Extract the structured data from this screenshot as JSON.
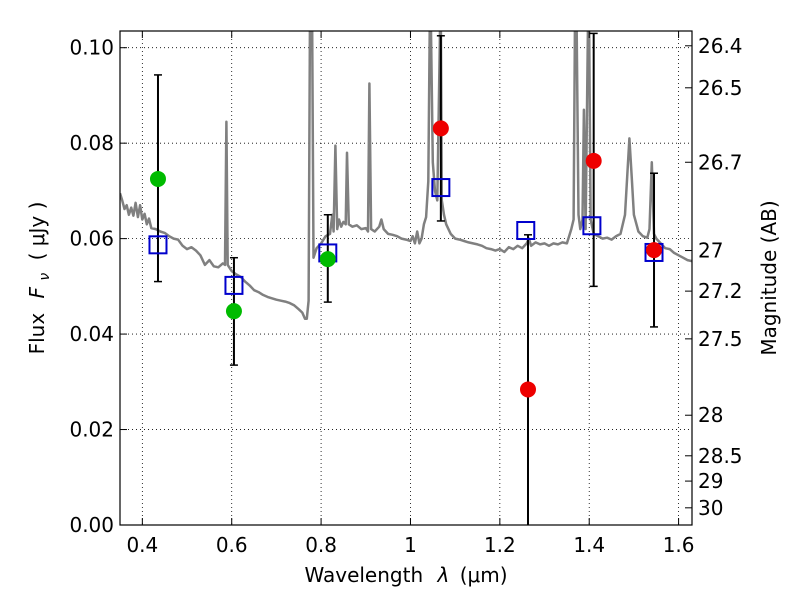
{
  "chart_data": {
    "type": "scatter",
    "xlabel_prefix": "Wavelength",
    "xlabel_symbol": "λ",
    "xlabel_units": "(μm)",
    "ylabel_prefix": "Flux",
    "ylabel_symbol": "F",
    "ylabel_subscript": "ν",
    "ylabel_units": "( μJy )",
    "ylabel_right": "Magnitude (AB)",
    "xlim": [
      0.35,
      1.63
    ],
    "ylim": [
      0.0,
      0.1035
    ],
    "x_ticks": [
      0.4,
      0.6,
      0.8,
      1.0,
      1.2,
      1.4,
      1.6
    ],
    "x_tick_labels": [
      "0.4",
      "0.6",
      "0.8",
      "1",
      "1.2",
      "1.4",
      "1.6"
    ],
    "y_ticks": [
      0.0,
      0.02,
      0.04,
      0.06,
      0.08,
      0.1
    ],
    "y_tick_labels": [
      "0.00",
      "0.02",
      "0.04",
      "0.06",
      "0.08",
      "0.10"
    ],
    "right_ticks": [
      {
        "flux": 0.1004,
        "label": "26.4"
      },
      {
        "flux": 0.0916,
        "label": "26.5"
      },
      {
        "flux": 0.076,
        "label": "26.7"
      },
      {
        "flux": 0.0575,
        "label": "27"
      },
      {
        "flux": 0.049,
        "label": "27.2"
      },
      {
        "flux": 0.039,
        "label": "27.5"
      },
      {
        "flux": 0.023,
        "label": "28"
      },
      {
        "flux": 0.0145,
        "label": "28.5"
      },
      {
        "flux": 0.0092,
        "label": "29"
      },
      {
        "flux": 0.0036,
        "label": "30"
      }
    ],
    "grid": true,
    "colors": {
      "spectrum": "#808080",
      "model_box": "#0000cc",
      "green": "#00bb00",
      "red": "#ee0000",
      "errorbar": "#000000"
    },
    "spectrum": [
      [
        0.35,
        0.0695
      ],
      [
        0.355,
        0.068
      ],
      [
        0.36,
        0.0662
      ],
      [
        0.365,
        0.067
      ],
      [
        0.37,
        0.065
      ],
      [
        0.375,
        0.0665
      ],
      [
        0.38,
        0.0648
      ],
      [
        0.385,
        0.0675
      ],
      [
        0.39,
        0.0645
      ],
      [
        0.395,
        0.067
      ],
      [
        0.4,
        0.064
      ],
      [
        0.405,
        0.0652
      ],
      [
        0.41,
        0.063
      ],
      [
        0.415,
        0.0642
      ],
      [
        0.42,
        0.0622
      ],
      [
        0.43,
        0.062
      ],
      [
        0.44,
        0.0615
      ],
      [
        0.45,
        0.0612
      ],
      [
        0.46,
        0.0605
      ],
      [
        0.47,
        0.06
      ],
      [
        0.48,
        0.0598
      ],
      [
        0.49,
        0.0585
      ],
      [
        0.5,
        0.0578
      ],
      [
        0.51,
        0.0582
      ],
      [
        0.52,
        0.0575
      ],
      [
        0.53,
        0.0565
      ],
      [
        0.54,
        0.0545
      ],
      [
        0.55,
        0.0555
      ],
      [
        0.56,
        0.0542
      ],
      [
        0.57,
        0.054
      ],
      [
        0.58,
        0.0548
      ],
      [
        0.585,
        0.0545
      ],
      [
        0.588,
        0.0845
      ],
      [
        0.591,
        0.0545
      ],
      [
        0.6,
        0.0532
      ],
      [
        0.61,
        0.0525
      ],
      [
        0.62,
        0.052
      ],
      [
        0.63,
        0.051
      ],
      [
        0.64,
        0.0502
      ],
      [
        0.65,
        0.0492
      ],
      [
        0.66,
        0.0488
      ],
      [
        0.67,
        0.0482
      ],
      [
        0.68,
        0.0478
      ],
      [
        0.69,
        0.0475
      ],
      [
        0.7,
        0.0472
      ],
      [
        0.71,
        0.047
      ],
      [
        0.72,
        0.0468
      ],
      [
        0.73,
        0.0465
      ],
      [
        0.74,
        0.046
      ],
      [
        0.75,
        0.0452
      ],
      [
        0.758,
        0.0445
      ],
      [
        0.764,
        0.0432
      ],
      [
        0.768,
        0.0432
      ],
      [
        0.772,
        0.047
      ],
      [
        0.775,
        0.1035
      ],
      [
        0.78,
        0.1035
      ],
      [
        0.783,
        0.056
      ],
      [
        0.79,
        0.058
      ],
      [
        0.8,
        0.059
      ],
      [
        0.81,
        0.0605
      ],
      [
        0.82,
        0.061
      ],
      [
        0.825,
        0.065
      ],
      [
        0.828,
        0.0615
      ],
      [
        0.832,
        0.0795
      ],
      [
        0.836,
        0.062
      ],
      [
        0.84,
        0.064
      ],
      [
        0.845,
        0.0625
      ],
      [
        0.85,
        0.0635
      ],
      [
        0.855,
        0.063
      ],
      [
        0.858,
        0.078
      ],
      [
        0.862,
        0.063
      ],
      [
        0.87,
        0.0625
      ],
      [
        0.88,
        0.0628
      ],
      [
        0.89,
        0.062
      ],
      [
        0.9,
        0.0622
      ],
      [
        0.905,
        0.0615
      ],
      [
        0.908,
        0.0925
      ],
      [
        0.912,
        0.062
      ],
      [
        0.92,
        0.0615
      ],
      [
        0.93,
        0.0625
      ],
      [
        0.935,
        0.064
      ],
      [
        0.94,
        0.062
      ],
      [
        0.95,
        0.061
      ],
      [
        0.96,
        0.0608
      ],
      [
        0.97,
        0.0605
      ],
      [
        0.98,
        0.06
      ],
      [
        0.99,
        0.0598
      ],
      [
        1.0,
        0.0595
      ],
      [
        1.005,
        0.0605
      ],
      [
        1.01,
        0.059
      ],
      [
        1.015,
        0.0615
      ],
      [
        1.02,
        0.059
      ],
      [
        1.025,
        0.06
      ],
      [
        1.03,
        0.063
      ],
      [
        1.035,
        0.0645
      ],
      [
        1.04,
        0.072
      ],
      [
        1.043,
        0.1035
      ],
      [
        1.046,
        0.1035
      ],
      [
        1.05,
        0.076
      ],
      [
        1.055,
        0.07
      ],
      [
        1.06,
        0.068
      ],
      [
        1.066,
        0.1035
      ],
      [
        1.068,
        0.1035
      ],
      [
        1.07,
        0.068
      ],
      [
        1.075,
        0.065
      ],
      [
        1.08,
        0.063
      ],
      [
        1.09,
        0.061
      ],
      [
        1.1,
        0.06
      ],
      [
        1.11,
        0.0598
      ],
      [
        1.12,
        0.0595
      ],
      [
        1.13,
        0.0592
      ],
      [
        1.14,
        0.059
      ],
      [
        1.15,
        0.0588
      ],
      [
        1.16,
        0.0585
      ],
      [
        1.17,
        0.058
      ],
      [
        1.18,
        0.0578
      ],
      [
        1.19,
        0.0575
      ],
      [
        1.2,
        0.0578
      ],
      [
        1.21,
        0.0572
      ],
      [
        1.22,
        0.0582
      ],
      [
        1.23,
        0.0578
      ],
      [
        1.24,
        0.0585
      ],
      [
        1.25,
        0.058
      ],
      [
        1.26,
        0.059
      ],
      [
        1.265,
        0.06
      ],
      [
        1.27,
        0.0585
      ],
      [
        1.28,
        0.0592
      ],
      [
        1.29,
        0.0588
      ],
      [
        1.3,
        0.059
      ],
      [
        1.31,
        0.0585
      ],
      [
        1.32,
        0.059
      ],
      [
        1.33,
        0.0588
      ],
      [
        1.34,
        0.0592
      ],
      [
        1.35,
        0.059
      ],
      [
        1.36,
        0.062
      ],
      [
        1.365,
        0.064
      ],
      [
        1.368,
        0.1035
      ],
      [
        1.372,
        0.1035
      ],
      [
        1.376,
        0.065
      ],
      [
        1.38,
        0.062
      ],
      [
        1.385,
        0.064
      ],
      [
        1.388,
        0.087
      ],
      [
        1.392,
        0.062
      ],
      [
        1.397,
        0.1035
      ],
      [
        1.4,
        0.1035
      ],
      [
        1.403,
        0.064
      ],
      [
        1.41,
        0.061
      ],
      [
        1.42,
        0.0605
      ],
      [
        1.43,
        0.06
      ],
      [
        1.44,
        0.0602
      ],
      [
        1.45,
        0.0598
      ],
      [
        1.46,
        0.0605
      ],
      [
        1.47,
        0.061
      ],
      [
        1.48,
        0.065
      ],
      [
        1.485,
        0.073
      ],
      [
        1.49,
        0.081
      ],
      [
        1.495,
        0.073
      ],
      [
        1.5,
        0.065
      ],
      [
        1.51,
        0.0615
      ],
      [
        1.52,
        0.0605
      ],
      [
        1.53,
        0.0602
      ],
      [
        1.535,
        0.062
      ],
      [
        1.54,
        0.076
      ],
      [
        1.545,
        0.061
      ],
      [
        1.55,
        0.06
      ],
      [
        1.56,
        0.059
      ],
      [
        1.57,
        0.058
      ],
      [
        1.58,
        0.0578
      ],
      [
        1.59,
        0.057
      ],
      [
        1.6,
        0.0565
      ],
      [
        1.61,
        0.056
      ],
      [
        1.62,
        0.0555
      ],
      [
        1.63,
        0.0553
      ]
    ],
    "model_points": [
      {
        "x": 0.435,
        "y": 0.0587
      },
      {
        "x": 0.605,
        "y": 0.0502
      },
      {
        "x": 0.815,
        "y": 0.057
      },
      {
        "x": 1.068,
        "y": 0.0707
      },
      {
        "x": 1.258,
        "y": 0.0617
      },
      {
        "x": 1.406,
        "y": 0.0627
      },
      {
        "x": 1.545,
        "y": 0.0571
      }
    ],
    "observed_points": [
      {
        "x": 0.435,
        "y": 0.0725,
        "ylow": 0.051,
        "yhigh": 0.0943,
        "color": "green"
      },
      {
        "x": 0.605,
        "y": 0.0448,
        "ylow": 0.0335,
        "yhigh": 0.056,
        "color": "green"
      },
      {
        "x": 0.815,
        "y": 0.0557,
        "ylow": 0.0467,
        "yhigh": 0.065,
        "color": "green"
      },
      {
        "x": 1.068,
        "y": 0.0831,
        "ylow": 0.0637,
        "yhigh": 0.1025,
        "color": "red"
      },
      {
        "x": 1.263,
        "y": 0.0284,
        "ylow": 0.0,
        "yhigh": 0.0608,
        "color": "red"
      },
      {
        "x": 1.41,
        "y": 0.0763,
        "ylow": 0.05,
        "yhigh": 0.103,
        "color": "red"
      },
      {
        "x": 1.545,
        "y": 0.0576,
        "ylow": 0.0415,
        "yhigh": 0.0737,
        "color": "red"
      }
    ]
  }
}
